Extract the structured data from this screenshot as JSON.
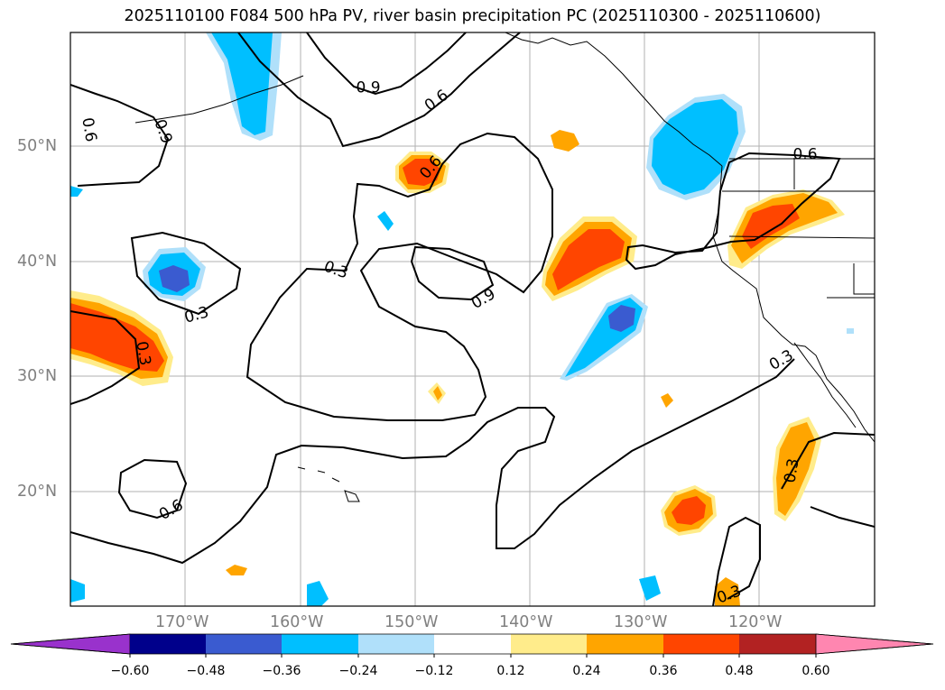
{
  "title": "2025110100 F084 500 hPa PV, river basin precipitation PC (2025110300 - 2025110600)",
  "lat_labels": [
    "50°N",
    "40°N",
    "30°N",
    "20°N"
  ],
  "lon_labels": [
    "170°W",
    "160°W",
    "150°W",
    "140°W",
    "130°W",
    "120°W"
  ],
  "contour_labels": [
    "0.9",
    "0.6",
    "0.6",
    "0.9",
    "0.6",
    "0.3",
    "0.3",
    "0.3",
    "0.9",
    "0.6",
    "0.6",
    "0.3",
    "0.3",
    "0.3"
  ],
  "colorbar": {
    "ticks": [
      "−0.60",
      "−0.48",
      "−0.36",
      "−0.24",
      "−0.12",
      "0.12",
      "0.24",
      "0.36",
      "0.48",
      "0.60"
    ],
    "colors": [
      "#9932cc",
      "#00008b",
      "#3a5bd0",
      "#00bfff",
      "#b0e0fa",
      "#ffffff",
      "#ffec8b",
      "#ffa500",
      "#ff4500",
      "#b22222",
      "#ff86b0"
    ]
  },
  "colors": {
    "neg_dark": "#3a5bd0",
    "neg_mid": "#00bfff",
    "neg_light": "#b0e0fa",
    "pos_light": "#ffec8b",
    "pos_mid": "#ffa500",
    "pos_dark": "#ff4500",
    "grid": "#b0b0b0",
    "axis_label": "#808080"
  }
}
